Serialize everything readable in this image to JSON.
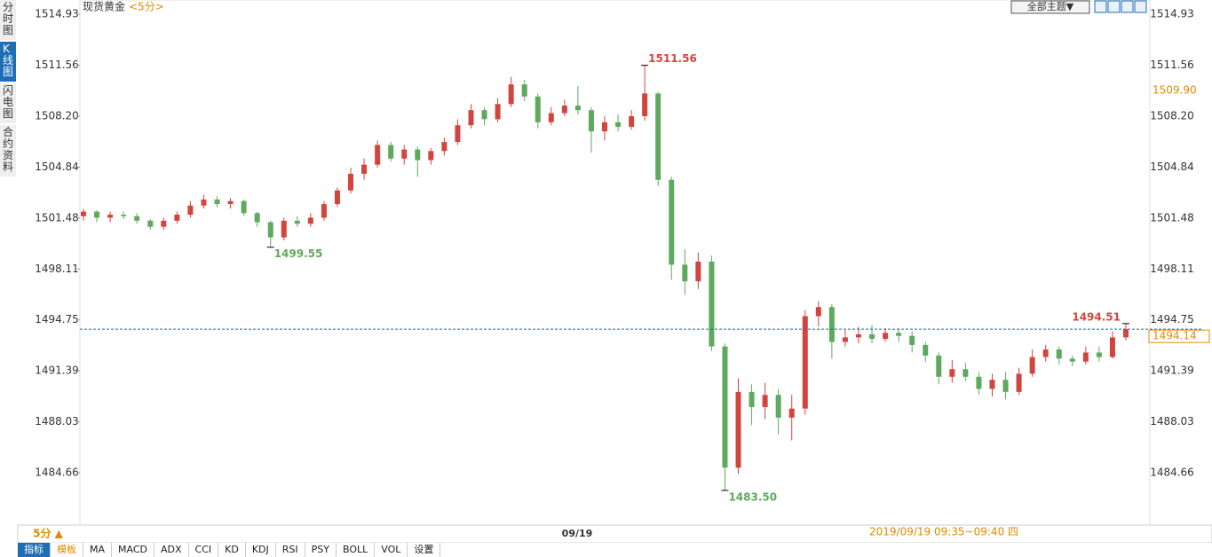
{
  "chart_data": {
    "type": "candlestick",
    "title": "现货黄金",
    "period": "<5分>",
    "theme_button": "全部主题▼",
    "sidebar": [
      "分时图",
      "K线图",
      "闪电图",
      "合约资料"
    ],
    "period_selector": "5分 ▲",
    "x_label": "09/19",
    "time_range": "2019/09/19 09:35~09:40 四",
    "toolbar": [
      "指标",
      "模板",
      "MA",
      "MACD",
      "ADX",
      "CCI",
      "KD",
      "KDJ",
      "RSI",
      "PSY",
      "BOLL",
      "VOL",
      "设置"
    ],
    "up_color": "#d2453f",
    "down_color": "#5fa85f",
    "ylim": [
      1481.21,
      1515.87
    ],
    "yticks": [
      1514.93,
      1511.56,
      {
        "value": 1508.2,
        "label": "1508.20"
      },
      1504.84,
      1501.48,
      1498.11,
      1494.75,
      1491.39,
      1488.03,
      1484.66
    ],
    "grid": false,
    "open": [
      1501.6,
      1501.9,
      1501.5,
      1501.7,
      1501.6,
      1501.3,
      1500.9,
      1501.3,
      1501.7,
      1502.3,
      1502.7,
      1502.4,
      1502.6,
      1501.8,
      1501.2,
      1500.2,
      1501.3,
      1501.1,
      1501.5,
      1502.4,
      1503.3,
      1504.4,
      1505.0,
      1506.3,
      1505.4,
      1506.0,
      1505.3,
      1505.9,
      1506.5,
      1507.6,
      1508.6,
      1508.0,
      1509.0,
      1510.3,
      1509.5,
      1507.8,
      1508.4,
      1508.9,
      1508.6,
      1507.2,
      1507.8,
      1507.5,
      1508.2,
      1509.7,
      1504.0,
      1498.4,
      1497.3,
      1498.6,
      1493.0,
      1485.0,
      1490.0,
      1489.0,
      1489.8,
      1488.3,
      1488.9,
      1495.0,
      1495.6,
      1493.3,
      1493.6,
      1493.8,
      1493.5,
      1493.9,
      1493.7,
      1493.1,
      1492.4,
      1491.0,
      1491.5,
      1491.0,
      1490.2,
      1490.8,
      1490.0,
      1491.2,
      1492.3,
      1492.8,
      1492.2,
      1492.0,
      1492.6,
      1492.3,
      1493.6
    ],
    "close": [
      1501.9,
      1501.5,
      1501.7,
      1501.6,
      1501.3,
      1500.9,
      1501.3,
      1501.7,
      1502.3,
      1502.7,
      1502.4,
      1502.6,
      1501.8,
      1501.2,
      1500.2,
      1501.3,
      1501.1,
      1501.5,
      1502.4,
      1503.3,
      1504.4,
      1505.0,
      1506.3,
      1505.4,
      1506.0,
      1505.3,
      1505.9,
      1506.5,
      1507.6,
      1508.6,
      1508.0,
      1509.0,
      1510.3,
      1509.5,
      1507.8,
      1508.4,
      1508.9,
      1508.6,
      1507.2,
      1507.8,
      1507.5,
      1508.2,
      1509.7,
      1504.0,
      1498.4,
      1497.3,
      1498.6,
      1493.0,
      1485.0,
      1490.0,
      1489.0,
      1489.8,
      1488.3,
      1488.9,
      1495.0,
      1495.6,
      1493.3,
      1493.6,
      1493.8,
      1493.5,
      1493.9,
      1493.7,
      1493.1,
      1492.4,
      1491.0,
      1491.5,
      1491.0,
      1490.2,
      1490.8,
      1490.0,
      1491.2,
      1492.3,
      1492.8,
      1492.2,
      1492.0,
      1492.6,
      1492.3,
      1493.6,
      1494.14
    ],
    "high": [
      1502.1,
      1502.0,
      1501.9,
      1501.9,
      1501.8,
      1501.4,
      1501.5,
      1501.9,
      1502.6,
      1503.0,
      1502.9,
      1502.8,
      1502.7,
      1501.9,
      1501.3,
      1501.5,
      1501.6,
      1501.8,
      1502.6,
      1503.5,
      1504.8,
      1505.4,
      1506.6,
      1506.5,
      1506.3,
      1506.2,
      1506.1,
      1506.8,
      1508.0,
      1509.0,
      1508.8,
      1509.4,
      1510.8,
      1510.6,
      1509.7,
      1508.8,
      1509.3,
      1510.2,
      1508.8,
      1508.2,
      1508.3,
      1508.6,
      1511.56,
      1509.8,
      1504.2,
      1499.4,
      1499.2,
      1499.0,
      1493.2,
      1490.9,
      1490.5,
      1490.6,
      1490.2,
      1489.8,
      1495.4,
      1496.0,
      1495.8,
      1494.1,
      1494.3,
      1494.4,
      1494.2,
      1494.2,
      1494.0,
      1493.3,
      1492.6,
      1492.1,
      1491.9,
      1491.3,
      1491.2,
      1491.3,
      1491.6,
      1492.8,
      1493.1,
      1493.0,
      1492.4,
      1493.0,
      1493.0,
      1494.0,
      1494.51
    ],
    "low": [
      1501.3,
      1501.2,
      1501.2,
      1501.4,
      1501.1,
      1500.7,
      1500.7,
      1501.1,
      1501.5,
      1502.1,
      1502.2,
      1502.1,
      1501.6,
      1500.9,
      1499.55,
      1500.0,
      1500.9,
      1500.9,
      1501.3,
      1502.2,
      1503.1,
      1504.0,
      1504.8,
      1505.2,
      1505.0,
      1504.2,
      1505.0,
      1505.6,
      1506.3,
      1507.4,
      1507.6,
      1507.8,
      1508.8,
      1509.2,
      1507.4,
      1507.6,
      1508.2,
      1508.3,
      1505.8,
      1506.6,
      1507.2,
      1507.3,
      1507.9,
      1503.6,
      1497.4,
      1496.4,
      1496.8,
      1492.7,
      1483.5,
      1484.6,
      1487.8,
      1488.2,
      1487.2,
      1486.8,
      1488.5,
      1494.3,
      1492.2,
      1493.0,
      1493.2,
      1493.2,
      1493.3,
      1493.3,
      1492.6,
      1492.0,
      1490.5,
      1490.6,
      1490.7,
      1489.8,
      1489.7,
      1489.5,
      1489.8,
      1491.0,
      1492.0,
      1491.8,
      1491.7,
      1491.8,
      1492.0,
      1492.2,
      1493.4
    ],
    "annotations": [
      {
        "value": 1511.56,
        "label": "1511.56",
        "color": "#d2453f"
      },
      {
        "value": 1499.55,
        "label": "1499.55",
        "color": "#5fa85f"
      },
      {
        "value": 1483.5,
        "label": "1483.50",
        "color": "#5fa85f"
      },
      {
        "value": 1494.51,
        "label": "1494.51",
        "color": "#d2453f"
      }
    ],
    "reference_price": {
      "value": 1509.9,
      "label": "1509.90"
    },
    "last_price": {
      "value": 1494.14,
      "label": "1494.14"
    }
  }
}
